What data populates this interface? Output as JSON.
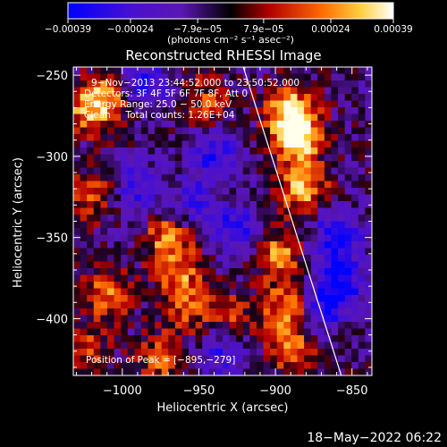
{
  "chart_data": {
    "type": "heatmap",
    "title": "Reconstructed RHESSI Image",
    "xlabel": "Heliocentric X (arcsec)",
    "ylabel": "Heliocentric Y (arcsec)",
    "xlim": [
      -1032,
      -837
    ],
    "ylim": [
      -435,
      -245
    ],
    "xticks": [
      -1000,
      -950,
      -900,
      -850
    ],
    "xtick_labels": [
      "−1000",
      "−950",
      "−900",
      "−850"
    ],
    "yticks": [
      -250,
      -300,
      -350,
      -400
    ],
    "ytick_labels": [
      "−250",
      "−300",
      "−350",
      "−400"
    ],
    "colorbar": {
      "min": -0.00039,
      "max": 0.00039,
      "tick_values": [
        -0.00039,
        -0.00024,
        -7.9e-05,
        7.9e-05,
        0.00024,
        0.00039
      ],
      "tick_labels": [
        "−0.00039",
        "−0.00024",
        "−7.9e−05",
        "7.9e−05",
        "0.00024",
        "0.00039"
      ],
      "unit_label": "(photons cm⁻² s⁻¹ asec⁻²)",
      "colors": [
        "#0000ff",
        "#5a16b4",
        "#000000",
        "#b40000",
        "#ff6a00",
        "#ffd040",
        "#ffffff"
      ]
    },
    "annotations": {
      "time_range": "9−Nov−2013 23:44:52.000  to 23:50:52.000",
      "detectors": "Detectors: 3F 4F 5F 6F 7F 8F, Att 0",
      "energy_range": "Energy Range: 25.0 − 50.0 keV",
      "clean_counts": "Clean     Total counts: 1.26E+04",
      "peak_position": "Position of Peak = [−895,−279]"
    },
    "peak": {
      "x": -895,
      "y": -279
    },
    "limb_line": {
      "points": [
        [
          -921,
          -245
        ],
        [
          -857,
          -435
        ]
      ]
    },
    "bright_regions": [
      {
        "x": -886,
        "y": -290,
        "intensity": 1.0
      },
      {
        "x": -890,
        "y": -272,
        "intensity": 0.95
      },
      {
        "x": -882,
        "y": -320,
        "intensity": 0.85
      },
      {
        "x": -898,
        "y": -360,
        "intensity": 0.75
      },
      {
        "x": -893,
        "y": -395,
        "intensity": 0.8
      },
      {
        "x": -888,
        "y": -420,
        "intensity": 0.6
      },
      {
        "x": -970,
        "y": -350,
        "intensity": 0.75
      },
      {
        "x": -962,
        "y": -375,
        "intensity": 0.6
      },
      {
        "x": -1022,
        "y": -270,
        "intensity": 0.7
      },
      {
        "x": -1010,
        "y": -265,
        "intensity": 0.6
      },
      {
        "x": -1020,
        "y": -325,
        "intensity": 0.55
      },
      {
        "x": -1010,
        "y": -385,
        "intensity": 0.65
      },
      {
        "x": -1025,
        "y": -420,
        "intensity": 0.5
      },
      {
        "x": -975,
        "y": -425,
        "intensity": 0.55
      },
      {
        "x": -945,
        "y": -265,
        "intensity": 0.5
      },
      {
        "x": -958,
        "y": -395,
        "intensity": 0.45
      },
      {
        "x": -930,
        "y": -400,
        "intensity": 0.5
      }
    ],
    "dim_regions": [
      {
        "x": -985,
        "y": -255,
        "intensity": -0.7
      },
      {
        "x": -940,
        "y": -300,
        "intensity": -0.6
      },
      {
        "x": -925,
        "y": -345,
        "intensity": -0.65
      },
      {
        "x": -990,
        "y": -320,
        "intensity": -0.55
      },
      {
        "x": -860,
        "y": -350,
        "intensity": -0.85
      },
      {
        "x": -857,
        "y": -380,
        "intensity": -0.75
      },
      {
        "x": -935,
        "y": -420,
        "intensity": -0.6
      },
      {
        "x": -870,
        "y": -395,
        "intensity": -0.55
      },
      {
        "x": -955,
        "y": -330,
        "intensity": -0.5
      }
    ]
  },
  "footer": {
    "timestamp": "18−May−2022 06:22"
  }
}
